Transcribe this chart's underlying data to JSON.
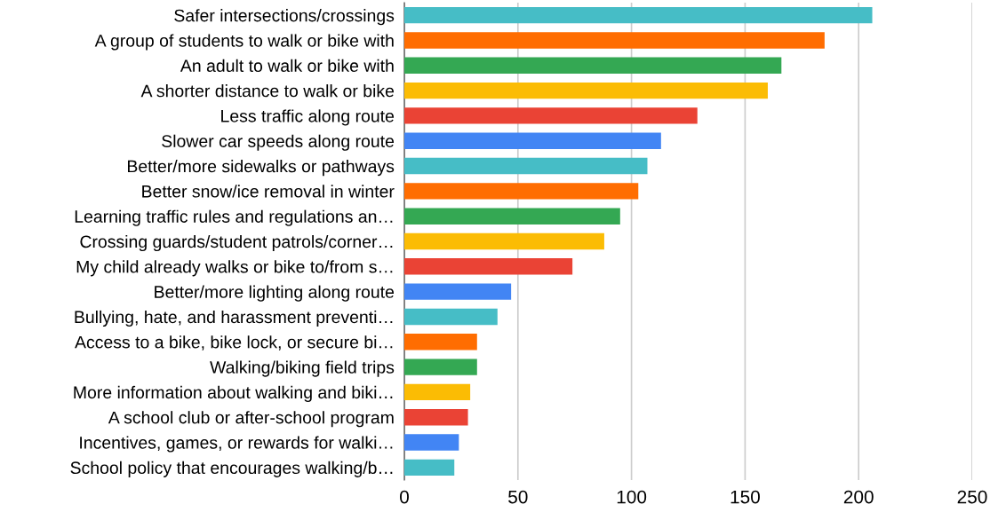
{
  "chart_data": {
    "type": "bar",
    "orientation": "horizontal",
    "categories": [
      "Safer intersections/crossings",
      "A group of students to walk or bike with",
      "An adult to walk or bike with",
      "A shorter distance to walk or bike",
      "Less traffic along route",
      "Slower car speeds along route",
      "Better/more sidewalks or pathways",
      "Better snow/ice removal in winter",
      "Learning traffic rules and regulations an…",
      "Crossing guards/student patrols/corner…",
      "My child already walks or bike to/from s…",
      "Better/more lighting along route",
      "Bullying, hate, and harassment preventi…",
      "Access to a bike, bike lock, or secure bi…",
      "Walking/biking field trips",
      "More information about walking and biki…",
      "A school club or after-school program",
      "Incentives, games, or rewards for walki…",
      "School policy that encourages walking/b…"
    ],
    "values": [
      206,
      185,
      166,
      160,
      129,
      113,
      107,
      103,
      95,
      88,
      74,
      47,
      41,
      32,
      32,
      29,
      28,
      24,
      22
    ],
    "colors": [
      "#46bdc6",
      "#ff6d01",
      "#34a853",
      "#fbbc04",
      "#ea4335",
      "#4285f4",
      "#46bdc6",
      "#ff6d01",
      "#34a853",
      "#fbbc04",
      "#ea4335",
      "#4285f4",
      "#46bdc6",
      "#ff6d01",
      "#34a853",
      "#fbbc04",
      "#ea4335",
      "#4285f4",
      "#46bdc6"
    ],
    "xlim": [
      0,
      250
    ],
    "xticks": [
      0,
      50,
      100,
      150,
      200,
      250
    ],
    "grid": "x"
  }
}
